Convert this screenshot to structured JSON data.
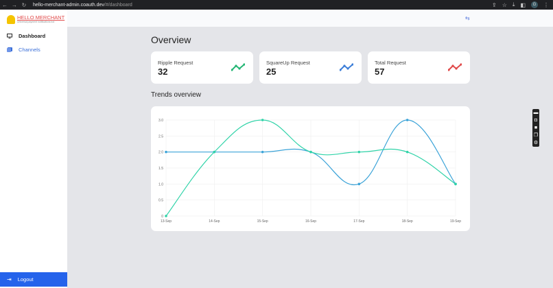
{
  "browser": {
    "url_host": "hello-merchant-admin.coauth.dev",
    "url_path": "/#/dashboard",
    "profile": "G"
  },
  "brand": {
    "name": "HELLO MERCHANT",
    "tagline": "Universal payment notifications bot"
  },
  "sidebar": {
    "items": [
      {
        "label": "Dashboard",
        "icon": "monitor-icon",
        "active": true
      },
      {
        "label": "Channels",
        "icon": "channels-icon",
        "active": false
      }
    ],
    "logout": "Logout"
  },
  "main": {
    "title": "Overview",
    "cards": [
      {
        "label": "Ripple Request",
        "value": "32",
        "color": "#22b573"
      },
      {
        "label": "SquareUp Request",
        "value": "25",
        "color": "#3b7dd8"
      },
      {
        "label": "Total Request",
        "value": "57",
        "color": "#e04848"
      }
    ],
    "trends_title": "Trends overview"
  },
  "chart_data": {
    "type": "line",
    "categories": [
      "13-Sep",
      "14-Sep",
      "15-Sep",
      "16-Sep",
      "17-Sep",
      "18-Sep",
      "19-Sep"
    ],
    "series": [
      {
        "values": [
          2,
          2,
          2,
          2,
          1,
          3,
          1
        ],
        "color": "#3ba3d8"
      },
      {
        "values": [
          0,
          2,
          3,
          2,
          2,
          2,
          1
        ],
        "color": "#2fd3a8"
      }
    ],
    "ylim": [
      0,
      3
    ],
    "yticks": [
      "0",
      "0.5",
      "1.0",
      "1.5",
      "2.0",
      "2.5",
      "3.0"
    ],
    "grid": true,
    "curve": "smooth"
  }
}
